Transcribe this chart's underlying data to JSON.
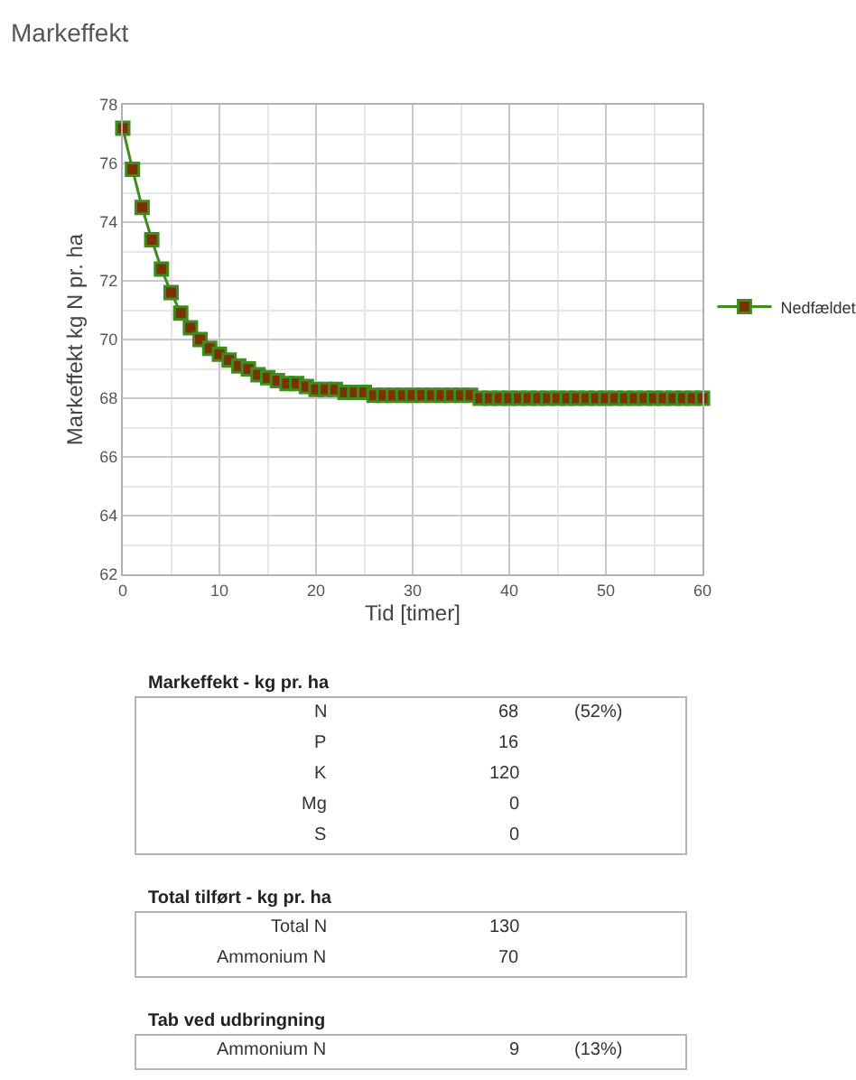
{
  "chart_data": [
    {
      "type": "line",
      "title": "Markeffekt",
      "xlabel": "Tid [timer]",
      "ylabel": "Markeffekt kg N pr. ha",
      "x": [
        0,
        1,
        2,
        3,
        4,
        5,
        6,
        7,
        8,
        9,
        10,
        11,
        12,
        13,
        14,
        15,
        16,
        17,
        18,
        19,
        20,
        21,
        22,
        23,
        24,
        25,
        26,
        27,
        28,
        29,
        30,
        31,
        32,
        33,
        34,
        35,
        36,
        37,
        38,
        39,
        40,
        41,
        42,
        43,
        44,
        45,
        46,
        47,
        48,
        49,
        50,
        51,
        52,
        53,
        54,
        55,
        56,
        57,
        58,
        59,
        60
      ],
      "series": [
        {
          "name": "Nedfældet",
          "color": "#3c8c1e",
          "values": [
            77.2,
            75.8,
            74.5,
            73.4,
            72.4,
            71.6,
            70.9,
            70.4,
            70.0,
            69.7,
            69.5,
            69.3,
            69.1,
            69.0,
            68.8,
            68.7,
            68.6,
            68.5,
            68.5,
            68.4,
            68.3,
            68.3,
            68.3,
            68.2,
            68.2,
            68.2,
            68.1,
            68.1,
            68.1,
            68.1,
            68.1,
            68.1,
            68.1,
            68.1,
            68.1,
            68.1,
            68.1,
            68.0,
            68.0,
            68.0,
            68.0,
            68.0,
            68.0,
            68.0,
            68.0,
            68.0,
            68.0,
            68.0,
            68.0,
            68.0,
            68.0,
            68.0,
            68.0,
            68.0,
            68.0,
            68.0,
            68.0,
            68.0,
            68.0,
            68.0,
            68.0
          ]
        }
      ],
      "xlim": [
        0,
        60
      ],
      "xticks": [
        0,
        10,
        20,
        30,
        40,
        50,
        60
      ],
      "ylim": [
        62,
        78
      ],
      "yticks": [
        62,
        64,
        66,
        68,
        70,
        72,
        74,
        76,
        78
      ],
      "grid": true,
      "legend": "right",
      "marker": "square",
      "line_style": "solid"
    },
    {
      "type": "other",
      "title": "Markeffekt - kg pr. ha",
      "categories": [
        "N",
        "P",
        "K",
        "Mg",
        "S"
      ],
      "values": [
        68,
        16,
        120,
        0,
        0
      ],
      "data_labels": true,
      "annotations": [
        {
          "text": "(52%)",
          "y": "N"
        }
      ]
    },
    {
      "type": "other",
      "title": "Total tilført - kg pr. ha",
      "categories": [
        "Total N",
        "Ammonium N"
      ],
      "values": [
        130,
        70
      ],
      "data_labels": true
    },
    {
      "type": "other",
      "title": "Tab ved udbringning",
      "categories": [
        "Ammonium N"
      ],
      "values": [
        9
      ],
      "data_labels": true,
      "annotations": [
        {
          "text": "(13%)",
          "y": "Ammonium N"
        }
      ]
    }
  ]
}
